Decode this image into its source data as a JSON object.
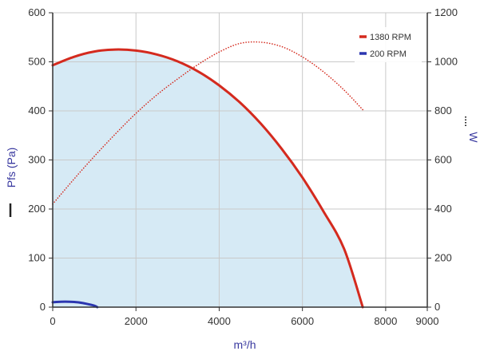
{
  "chart_data": {
    "type": "line",
    "xlabel": "m³/h",
    "ylabel_left": "Pfs (Pa)",
    "ylabel_right": "W",
    "xlim": [
      0,
      9000
    ],
    "ylim_left": [
      0,
      600
    ],
    "ylim_right": [
      0,
      1200
    ],
    "x_ticks": [
      0,
      2000,
      4000,
      6000,
      8000,
      9000
    ],
    "y_left_ticks": [
      0,
      100,
      200,
      300,
      400,
      500,
      600
    ],
    "y_right_ticks": [
      0,
      200,
      400,
      600,
      800,
      1000,
      1200
    ],
    "grid": true,
    "legend_position": "top-right",
    "legend": [
      {
        "label": "1380 RPM",
        "color": "#d42a1e"
      },
      {
        "label": "200 RPM",
        "color": "#2b36b0"
      }
    ],
    "series": [
      {
        "name": "1380 RPM",
        "axis": "left",
        "style": "solid",
        "color": "#d42a1e",
        "fill": "#d6eaf5",
        "x": [
          0,
          500,
          1000,
          1500,
          2000,
          2500,
          3000,
          3500,
          4000,
          4500,
          5000,
          5500,
          6000,
          6500,
          7000,
          7450
        ],
        "y": [
          493,
          510,
          521,
          525,
          523,
          515,
          501,
          480,
          452,
          417,
          374,
          323,
          264,
          196,
          119,
          0
        ]
      },
      {
        "name": "1380 RPM",
        "axis": "right",
        "style": "dotted",
        "color": "#d42a1e",
        "x": [
          0,
          500,
          1000,
          1500,
          2000,
          2500,
          3000,
          3500,
          4000,
          4500,
          5000,
          5500,
          6000,
          6500,
          7000,
          7450
        ],
        "y": [
          420,
          520,
          615,
          705,
          790,
          865,
          930,
          990,
          1040,
          1075,
          1080,
          1062,
          1020,
          960,
          885,
          805
        ]
      },
      {
        "name": "200 RPM",
        "axis": "left",
        "style": "solid",
        "color": "#2b36b0",
        "x": [
          0,
          200,
          400,
          600,
          800,
          1000,
          1070
        ],
        "y": [
          10,
          11,
          11,
          10,
          7,
          3,
          0
        ]
      }
    ]
  }
}
